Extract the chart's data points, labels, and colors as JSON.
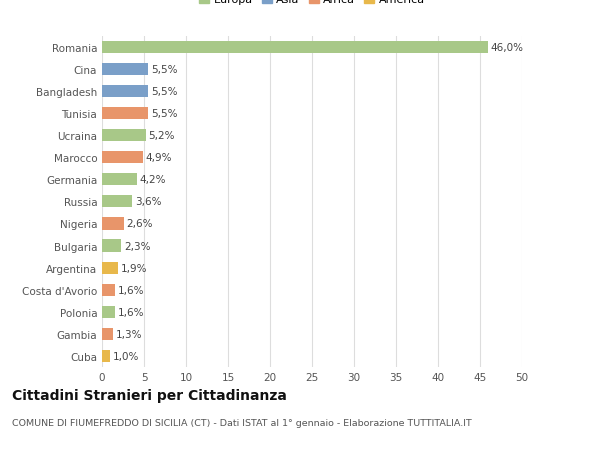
{
  "categories": [
    "Cuba",
    "Gambia",
    "Polonia",
    "Costa d'Avorio",
    "Argentina",
    "Bulgaria",
    "Nigeria",
    "Russia",
    "Germania",
    "Marocco",
    "Ucraina",
    "Tunisia",
    "Bangladesh",
    "Cina",
    "Romania"
  ],
  "values": [
    1.0,
    1.3,
    1.6,
    1.6,
    1.9,
    2.3,
    2.6,
    3.6,
    4.2,
    4.9,
    5.2,
    5.5,
    5.5,
    5.5,
    46.0
  ],
  "labels": [
    "1,0%",
    "1,3%",
    "1,6%",
    "1,6%",
    "1,9%",
    "2,3%",
    "2,6%",
    "3,6%",
    "4,2%",
    "4,9%",
    "5,2%",
    "5,5%",
    "5,5%",
    "5,5%",
    "46,0%"
  ],
  "colors": [
    "#e8b84b",
    "#e8956a",
    "#a8c888",
    "#e8956a",
    "#e8b84b",
    "#a8c888",
    "#e8956a",
    "#a8c888",
    "#a8c888",
    "#e8956a",
    "#a8c888",
    "#e8956a",
    "#7a9fc8",
    "#7a9fc8",
    "#a8c888"
  ],
  "legend": [
    {
      "label": "Europa",
      "color": "#a8c888"
    },
    {
      "label": "Asia",
      "color": "#7a9fc8"
    },
    {
      "label": "Africa",
      "color": "#e8956a"
    },
    {
      "label": "America",
      "color": "#e8b84b"
    }
  ],
  "title": "Cittadini Stranieri per Cittadinanza",
  "subtitle": "COMUNE DI FIUMEFREDDO DI SICILIA (CT) - Dati ISTAT al 1° gennaio - Elaborazione TUTTITALIA.IT",
  "xlim": [
    0,
    50
  ],
  "xticks": [
    0,
    5,
    10,
    15,
    20,
    25,
    30,
    35,
    40,
    45,
    50
  ],
  "background_color": "#ffffff",
  "grid_color": "#dddddd",
  "bar_height": 0.55,
  "label_fontsize": 7.5,
  "tick_fontsize": 7.5,
  "title_fontsize": 10,
  "subtitle_fontsize": 6.8
}
